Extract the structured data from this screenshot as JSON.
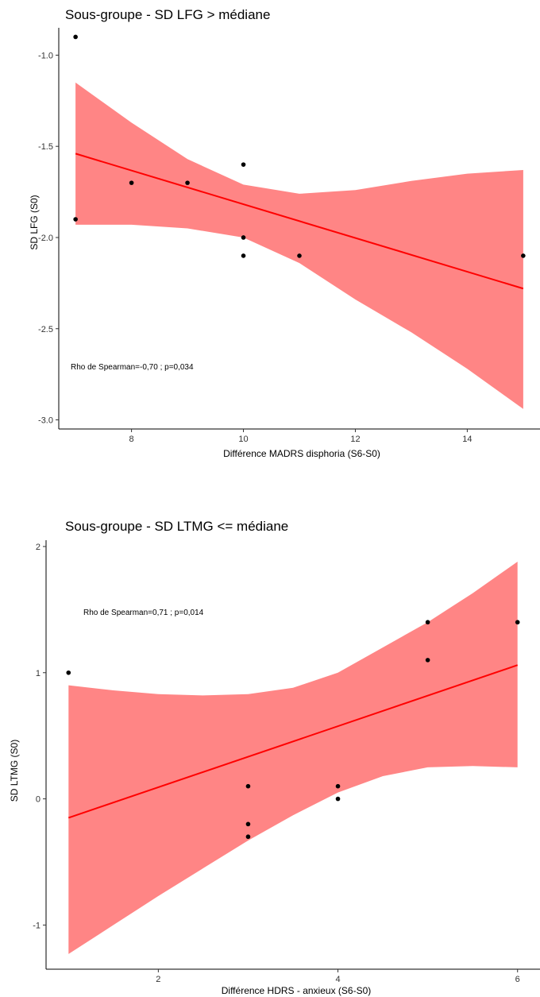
{
  "chart_data": [
    {
      "type": "scatter",
      "title": "Sous-groupe - SD LFG > médiane",
      "xlabel": "Différence MADRS disphoria (S6-S0)",
      "ylabel": "SD LFG (S0)",
      "xlim": [
        6.7,
        15.3
      ],
      "ylim": [
        -3.05,
        -0.85
      ],
      "xticks": [
        8,
        10,
        12,
        14
      ],
      "xtick_labels": [
        "8",
        "10",
        "12",
        "14"
      ],
      "yticks": [
        -3.0,
        -2.5,
        -2.0,
        -1.5,
        -1.0
      ],
      "ytick_labels": [
        "-3.0",
        "-2.5",
        "-2.0",
        "-1.5",
        "-1.0"
      ],
      "grid": false,
      "annotation": "Rho de Spearman=-0,70 ; p=0,034",
      "points": [
        {
          "x": 7,
          "y": -0.9
        },
        {
          "x": 7,
          "y": -1.9
        },
        {
          "x": 8,
          "y": -1.7
        },
        {
          "x": 9,
          "y": -1.7
        },
        {
          "x": 10,
          "y": -1.6
        },
        {
          "x": 10,
          "y": -2.0
        },
        {
          "x": 10,
          "y": -2.1
        },
        {
          "x": 11,
          "y": -2.1
        },
        {
          "x": 15,
          "y": -2.1
        }
      ],
      "fit": {
        "type": "linear",
        "x": [
          7,
          15
        ],
        "y": [
          -1.54,
          -2.28
        ]
      },
      "confidence_band": {
        "x": [
          7,
          8,
          9,
          10,
          11,
          12,
          13,
          14,
          15
        ],
        "upper": [
          -1.15,
          -1.37,
          -1.57,
          -1.71,
          -1.76,
          -1.74,
          -1.69,
          -1.65,
          -1.63
        ],
        "lower": [
          -1.93,
          -1.93,
          -1.95,
          -2.0,
          -2.14,
          -2.34,
          -2.52,
          -2.72,
          -2.94
        ]
      },
      "colors": {
        "fit": "#ff0000",
        "band": "#ff8080",
        "points": "#000000"
      }
    },
    {
      "type": "scatter",
      "title": "Sous-groupe - SD LTMG <= médiane",
      "xlabel": "Différence HDRS - anxieux (S6-S0)",
      "ylabel": "SD LTMG (S0)",
      "xlim": [
        0.75,
        6.25
      ],
      "ylim": [
        -1.35,
        2.05
      ],
      "xticks": [
        2,
        4,
        6
      ],
      "xtick_labels": [
        "2",
        "4",
        "6"
      ],
      "yticks": [
        -1,
        0,
        1,
        2
      ],
      "ytick_labels": [
        "-1",
        "0",
        "1",
        "2"
      ],
      "grid": false,
      "annotation": "Rho de Spearman=0,71 ; p=0,014",
      "points": [
        {
          "x": 1,
          "y": 1.0
        },
        {
          "x": 3,
          "y": 0.1
        },
        {
          "x": 3,
          "y": -0.2
        },
        {
          "x": 3,
          "y": -0.3
        },
        {
          "x": 4,
          "y": 0.1
        },
        {
          "x": 4,
          "y": 0.0
        },
        {
          "x": 5,
          "y": 1.4
        },
        {
          "x": 5,
          "y": 1.1
        },
        {
          "x": 6,
          "y": 1.4
        }
      ],
      "fit": {
        "type": "linear",
        "x": [
          1,
          6
        ],
        "y": [
          -0.15,
          1.06
        ]
      },
      "confidence_band": {
        "x": [
          1,
          1.5,
          2,
          2.5,
          3,
          3.5,
          4,
          4.5,
          5,
          5.5,
          6
        ],
        "upper": [
          0.9,
          0.86,
          0.83,
          0.82,
          0.83,
          0.88,
          1.0,
          1.2,
          1.4,
          1.63,
          1.88
        ],
        "lower": [
          -1.23,
          -1.0,
          -0.77,
          -0.55,
          -0.33,
          -0.13,
          0.05,
          0.18,
          0.25,
          0.26,
          0.25
        ]
      },
      "colors": {
        "fit": "#ff0000",
        "band": "#ff8080",
        "points": "#000000"
      }
    }
  ]
}
